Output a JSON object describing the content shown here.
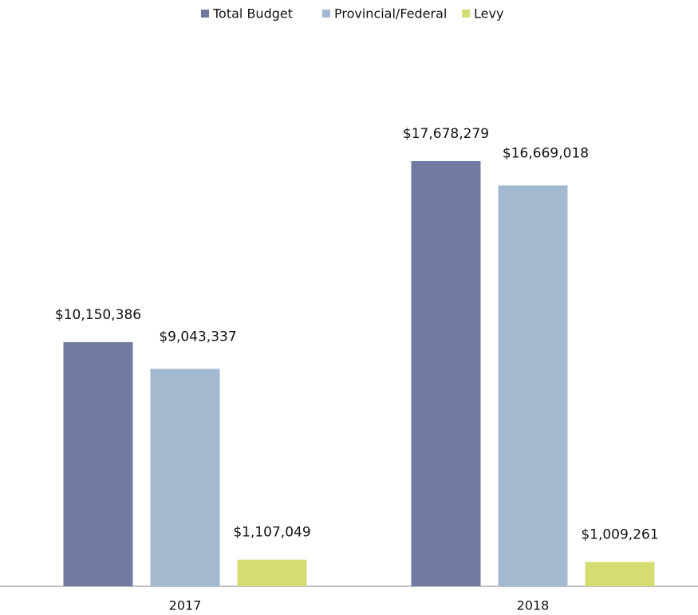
{
  "chart_data": {
    "type": "bar",
    "categories": [
      "2017",
      "2018"
    ],
    "series": [
      {
        "name": "Total Budget",
        "color": "#717ba1",
        "values": [
          10150386,
          17678279
        ],
        "value_labels": [
          "$10,150,386",
          "$17,678,279"
        ]
      },
      {
        "name": "Provincial/Federal",
        "color": "#a3b9cf",
        "values": [
          9043337,
          16669018
        ],
        "value_labels": [
          "$9,043,337",
          "$16,669,018"
        ]
      },
      {
        "name": "Levy",
        "color": "#d5dc72",
        "values": [
          1107049,
          1009261
        ],
        "value_labels": [
          "$1,107,049",
          "$1,009,261"
        ]
      }
    ],
    "legend": "top"
  }
}
